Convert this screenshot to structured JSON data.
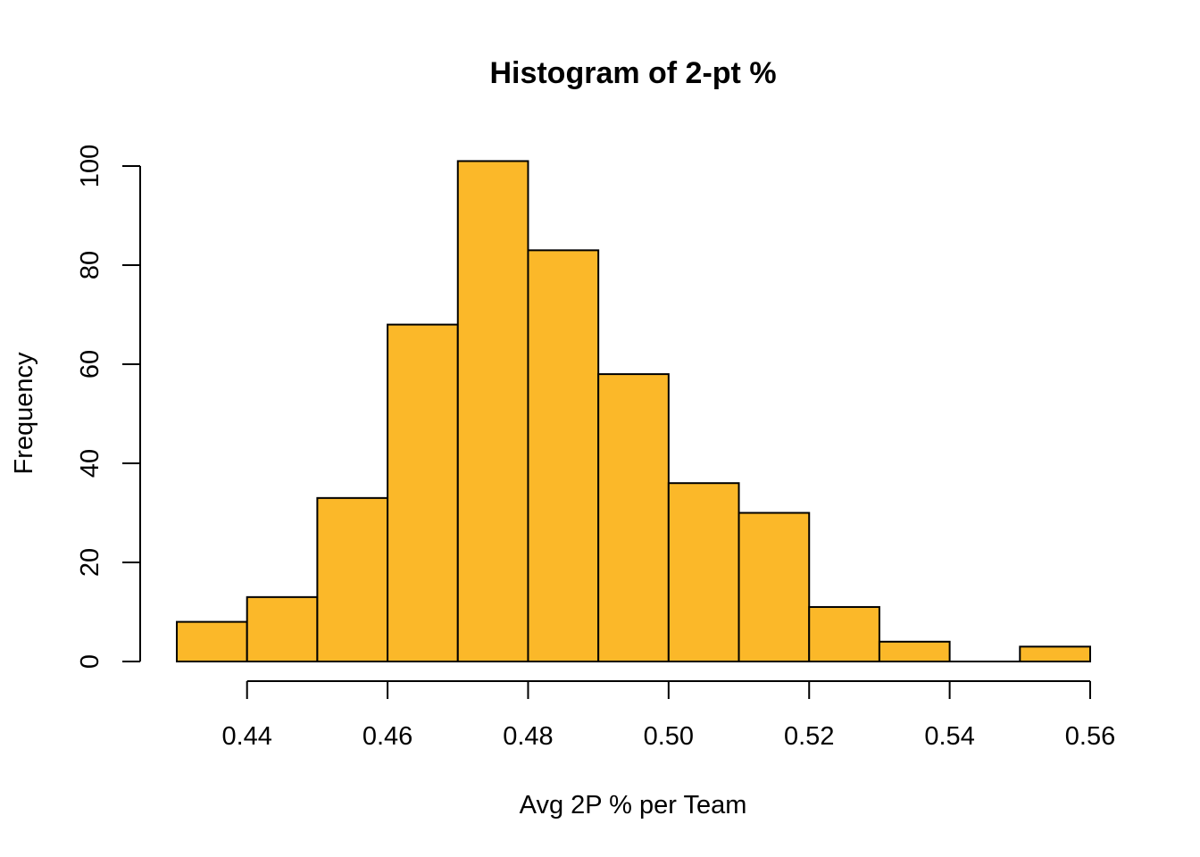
{
  "chart_data": {
    "type": "bar",
    "title": "Histogram of 2-pt %",
    "xlabel": "Avg 2P % per Team",
    "ylabel": "Frequency",
    "bin_edges": [
      0.43,
      0.44,
      0.45,
      0.46,
      0.47,
      0.48,
      0.49,
      0.5,
      0.51,
      0.52,
      0.53,
      0.54,
      0.55,
      0.56
    ],
    "values": [
      8,
      13,
      33,
      68,
      101,
      83,
      58,
      36,
      30,
      11,
      4,
      0,
      3
    ],
    "xlim": [
      0.43,
      0.56
    ],
    "ylim": [
      0,
      100
    ],
    "x_ticks": [
      "0.44",
      "0.46",
      "0.48",
      "0.50",
      "0.52",
      "0.54",
      "0.56"
    ],
    "y_ticks": [
      "0",
      "20",
      "40",
      "60",
      "80",
      "100"
    ],
    "bar_color": "#FBB829",
    "grid": false
  }
}
